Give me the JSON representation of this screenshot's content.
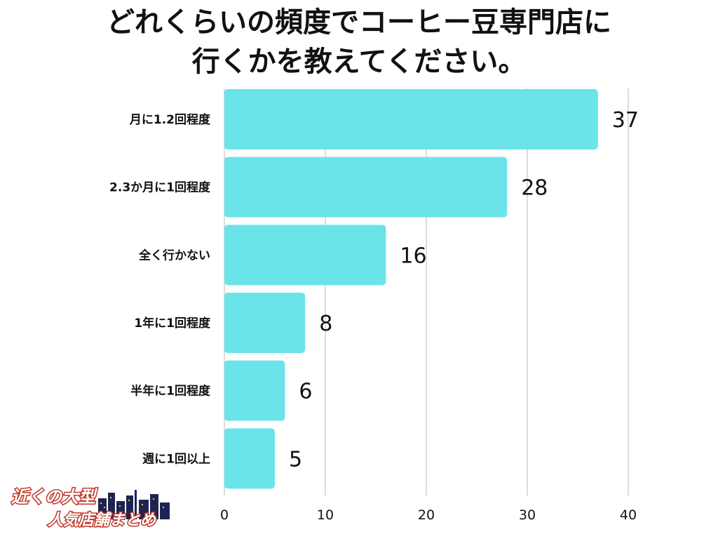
{
  "title_lines": [
    "どれくらいの頻度でコーヒー豆専門店に",
    "行くかを教えてください。"
  ],
  "logo_text": [
    "近くの大型",
    "人気店舗まとめ"
  ],
  "colors": {
    "bar": "#6ae4e9",
    "grid": "#d0d0d0",
    "text": "#111111"
  },
  "chart_data": {
    "type": "bar",
    "orientation": "horizontal",
    "title": "どれくらいの頻度でコーヒー豆専門店に行くかを教えてください。",
    "categories": [
      "月に1.2回程度",
      "2.3か月に1回程度",
      "全く行かない",
      "1年に1回程度",
      "半年に1回程度",
      "週に1回以上"
    ],
    "values": [
      37,
      28,
      16,
      8,
      6,
      5
    ],
    "xlim": [
      0,
      40
    ],
    "xticks": [
      0,
      10,
      20,
      30,
      40
    ],
    "grid": true,
    "legend": "none"
  }
}
